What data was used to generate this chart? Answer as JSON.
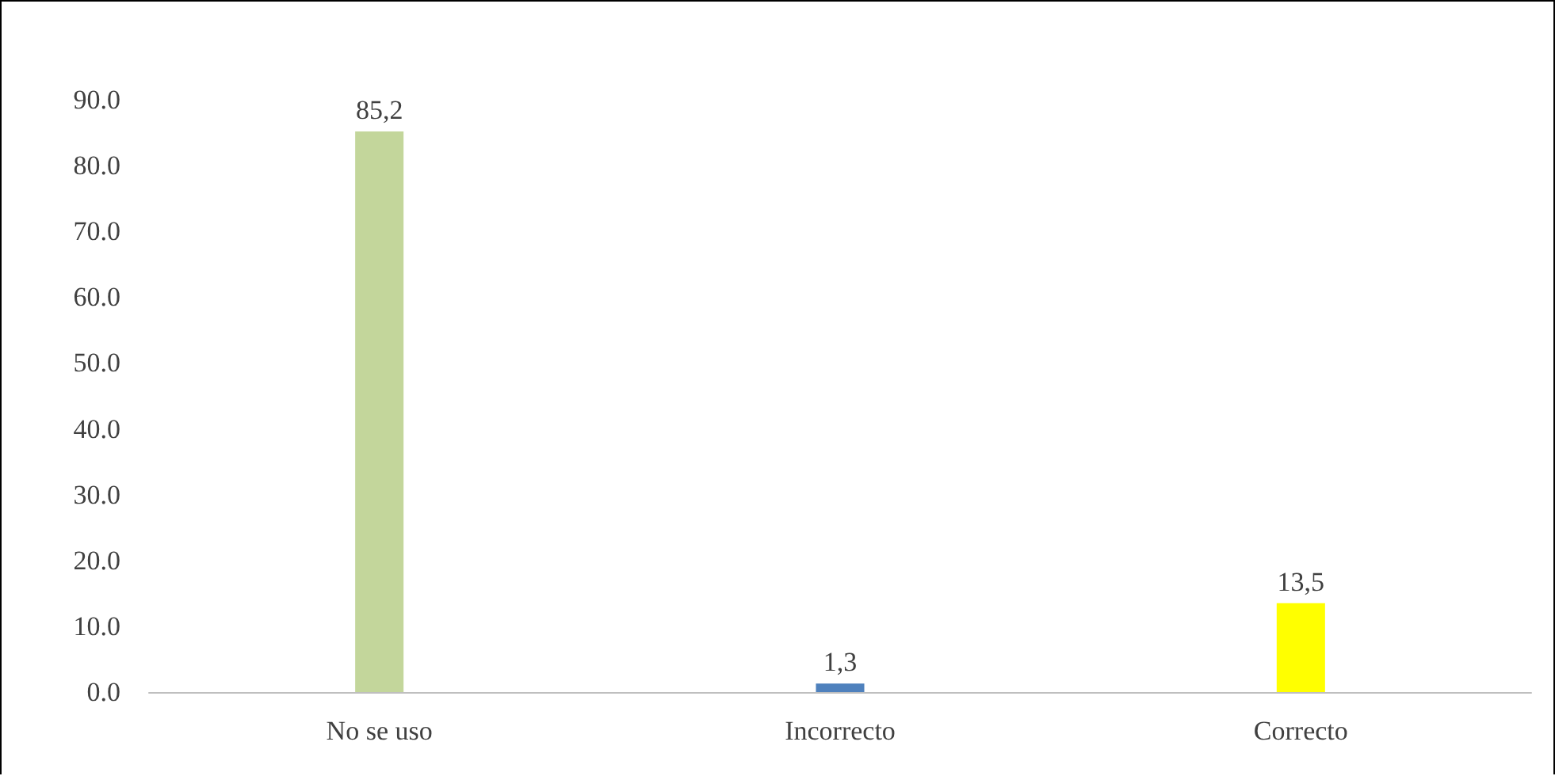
{
  "chart_data": {
    "type": "bar",
    "categories": [
      "No se uso",
      "Incorrecto",
      "Correcto"
    ],
    "values": [
      85.2,
      1.3,
      13.5
    ],
    "colors": [
      "#c3d69b",
      "#4f81bd",
      "#ffff00"
    ],
    "value_labels": [
      "85,2",
      "1,3",
      "13,5"
    ],
    "ylim": [
      0,
      90
    ],
    "yticks": [
      {
        "value": 0,
        "label": "0.0"
      },
      {
        "value": 10,
        "label": "10.0"
      },
      {
        "value": 20,
        "label": "20.0"
      },
      {
        "value": 30,
        "label": "30.0"
      },
      {
        "value": 40,
        "label": "40.0"
      },
      {
        "value": 50,
        "label": "50.0"
      },
      {
        "value": 60,
        "label": "60.0"
      },
      {
        "value": 70,
        "label": "70.0"
      },
      {
        "value": 80,
        "label": "80.0"
      },
      {
        "value": 90,
        "label": "90.0"
      }
    ],
    "grid": false
  }
}
